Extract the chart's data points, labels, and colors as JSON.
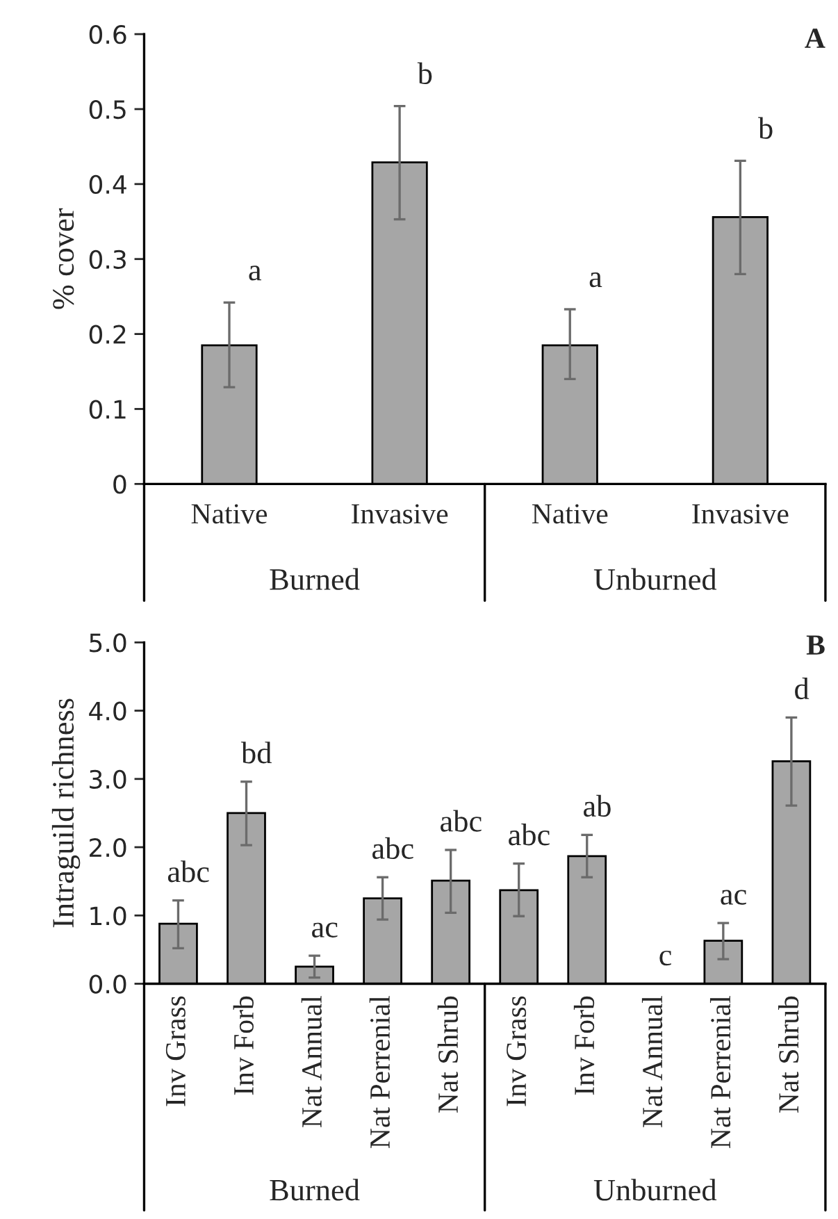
{
  "chart_data": [
    {
      "type": "bar",
      "title": "A",
      "ylabel": "% cover",
      "categories": [
        "Native",
        "Invasive",
        "Native",
        "Invasive"
      ],
      "values": [
        0.185,
        0.429,
        0.185,
        0.356
      ],
      "errors": [
        [
          0.129,
          0.242
        ],
        [
          0.353,
          0.504
        ],
        [
          0.14,
          0.233
        ],
        [
          0.28,
          0.431
        ]
      ],
      "value_labels": [
        "a",
        "b",
        "a",
        "b"
      ],
      "color": "#a6a6a6",
      "ylim": [
        0,
        0.6
      ],
      "yticks": [
        0,
        0.1,
        0.2,
        0.3,
        0.4,
        0.5,
        0.6
      ],
      "annotations": [
        "Burned",
        "Unburned"
      ],
      "grid": false,
      "legend": false
    },
    {
      "type": "bar",
      "title": "B",
      "ylabel": "Intraguild richness",
      "categories": [
        "Inv Grass",
        "Inv Forb",
        "Nat Annual",
        "Nat Perrenial",
        "Nat Shrub",
        "Inv Grass",
        "Inv Forb",
        "Nat Annual",
        "Nat Perrenial",
        "Nat Shrub"
      ],
      "values": [
        0.88,
        2.5,
        0.25,
        1.25,
        1.51,
        1.37,
        1.87,
        null,
        0.63,
        3.26
      ],
      "errors": [
        [
          0.52,
          1.22
        ],
        [
          2.03,
          2.96
        ],
        [
          0.09,
          0.41
        ],
        [
          0.94,
          1.56
        ],
        [
          1.04,
          1.96
        ],
        [
          0.99,
          1.76
        ],
        [
          1.56,
          2.18
        ],
        null,
        [
          0.36,
          0.89
        ],
        [
          2.61,
          3.9
        ]
      ],
      "value_labels": [
        "abc",
        "bd",
        "ac",
        "abc",
        "abc",
        "abc",
        "ab",
        "c",
        "ac",
        "d"
      ],
      "color": "#a6a6a6",
      "ylim": [
        0,
        5
      ],
      "yticks": [
        {
          "value": 0,
          "label": "0.0"
        },
        {
          "value": 1,
          "label": "1.0"
        },
        {
          "value": 2,
          "label": "2.0"
        },
        {
          "value": 3,
          "label": "3.0"
        },
        {
          "value": 4,
          "label": "4.0"
        },
        {
          "value": 5,
          "label": "5.0"
        }
      ],
      "annotations": [
        "Burned",
        "Unburned"
      ],
      "grid": false,
      "legend": false
    }
  ]
}
